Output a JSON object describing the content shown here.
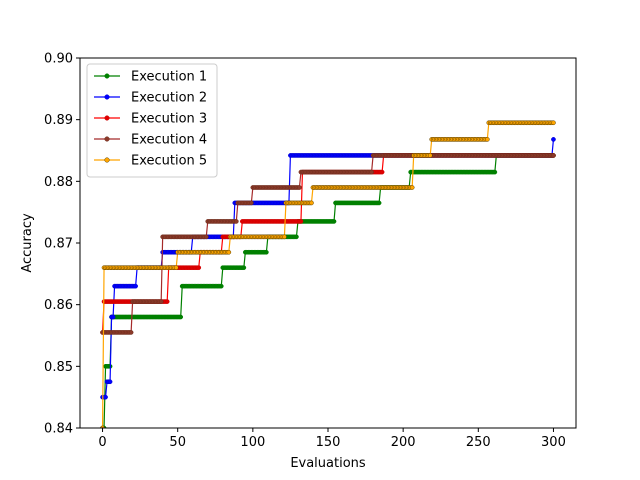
{
  "chart_data": {
    "type": "line",
    "xlabel": "Evaluations",
    "ylabel": "Accuracy",
    "xlim": [
      -15,
      315
    ],
    "ylim": [
      0.84,
      0.9
    ],
    "xticks": [
      0,
      50,
      100,
      150,
      200,
      250,
      300
    ],
    "yticks": [
      0.84,
      0.85,
      0.86,
      0.87,
      0.88,
      0.89,
      0.9
    ],
    "xtick_labels": [
      "0",
      "50",
      "100",
      "150",
      "200",
      "250",
      "300"
    ],
    "ytick_labels": [
      "0.84",
      "0.85",
      "0.86",
      "0.87",
      "0.88",
      "0.89",
      "0.90"
    ],
    "grid": false,
    "legend_position": "top-left",
    "step_style": "post",
    "evaluations": 300,
    "series": [
      {
        "name": "Execution 1",
        "color": "#008000",
        "marker_color": "#008000",
        "marker_edge": "#008000",
        "steps": [
          [
            0,
            0.84
          ],
          [
            2,
            0.85
          ],
          [
            6,
            0.858
          ],
          [
            53,
            0.863
          ],
          [
            80,
            0.866
          ],
          [
            95,
            0.8685
          ],
          [
            110,
            0.871
          ],
          [
            130,
            0.8735
          ],
          [
            155,
            0.8765
          ],
          [
            185,
            0.879
          ],
          [
            205,
            0.8815
          ],
          [
            262,
            0.8842
          ],
          [
            300,
            0.8842
          ]
        ]
      },
      {
        "name": "Execution 2",
        "color": "#0000ff",
        "marker_color": "#0000ff",
        "marker_edge": "#0000cc",
        "steps": [
          [
            0,
            0.845
          ],
          [
            3,
            0.8475
          ],
          [
            6,
            0.858
          ],
          [
            8,
            0.863
          ],
          [
            23,
            0.866
          ],
          [
            40,
            0.8685
          ],
          [
            60,
            0.871
          ],
          [
            88,
            0.8765
          ],
          [
            125,
            0.8842
          ],
          [
            185,
            0.8842
          ],
          [
            300,
            0.8868
          ]
        ]
      },
      {
        "name": "Execution 3",
        "color": "#ff0000",
        "marker_color": "#e00000",
        "marker_edge": "#cc0000",
        "steps": [
          [
            0,
            0.8555
          ],
          [
            1,
            0.8605
          ],
          [
            23,
            0.8605
          ],
          [
            44,
            0.866
          ],
          [
            65,
            0.8685
          ],
          [
            80,
            0.871
          ],
          [
            93,
            0.8735
          ],
          [
            133,
            0.8815
          ],
          [
            187,
            0.8842
          ],
          [
            300,
            0.8842
          ]
        ]
      },
      {
        "name": "Execution 4",
        "color": "#a52a2a",
        "marker_color": "#8b3a2a",
        "marker_edge": "#6b2a1a",
        "steps": [
          [
            0,
            0.8555
          ],
          [
            20,
            0.8605
          ],
          [
            40,
            0.871
          ],
          [
            70,
            0.8735
          ],
          [
            90,
            0.8765
          ],
          [
            100,
            0.879
          ],
          [
            132,
            0.8815
          ],
          [
            180,
            0.8842
          ],
          [
            300,
            0.8842
          ]
        ]
      },
      {
        "name": "Execution 5",
        "color": "#ffa500",
        "marker_color": "#ffa500",
        "marker_edge": "#5a4000",
        "steps": [
          [
            0,
            0.84
          ],
          [
            1,
            0.866
          ],
          [
            50,
            0.8685
          ],
          [
            85,
            0.871
          ],
          [
            122,
            0.8765
          ],
          [
            140,
            0.879
          ],
          [
            207,
            0.8842
          ],
          [
            219,
            0.8868
          ],
          [
            257,
            0.8895
          ],
          [
            300,
            0.8895
          ]
        ]
      }
    ]
  }
}
